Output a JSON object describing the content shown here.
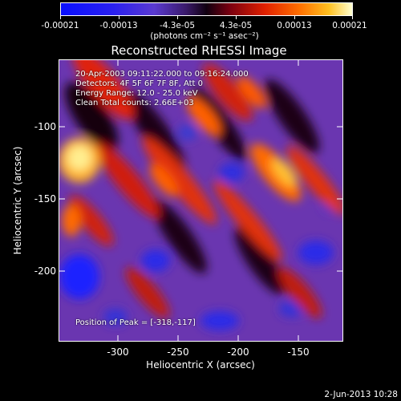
{
  "colorbar": {
    "ticks": [
      "-0.00021",
      "-0.00013",
      "-4.3e-05",
      "4.3e-05",
      "0.00013",
      "0.00021"
    ],
    "units": "(photons cm⁻² s⁻¹ asec⁻²)"
  },
  "image": {
    "title": "Reconstructed RHESSI Image",
    "info": {
      "time": "20-Apr-2003 09:11:22.000 to 09:16:24.000",
      "detectors": "Detectors: 4F 5F 6F 7F 8F, Att 0",
      "energy": "Energy Range: 12.0 - 25.0 keV",
      "clean": "Clean    Total counts: 2.66E+03"
    },
    "peak": "Position of Peak = [-318,-117]"
  },
  "axes": {
    "xlabel": "Heliocentric X (arcsec)",
    "ylabel": "Heliocentric Y (arcsec)",
    "xticks": [
      "-300",
      "-250",
      "-200",
      "-150"
    ],
    "yticks": [
      "-100",
      "-150",
      "-200"
    ]
  },
  "footer": {
    "date": "2-Jun-2013 10:28"
  }
}
